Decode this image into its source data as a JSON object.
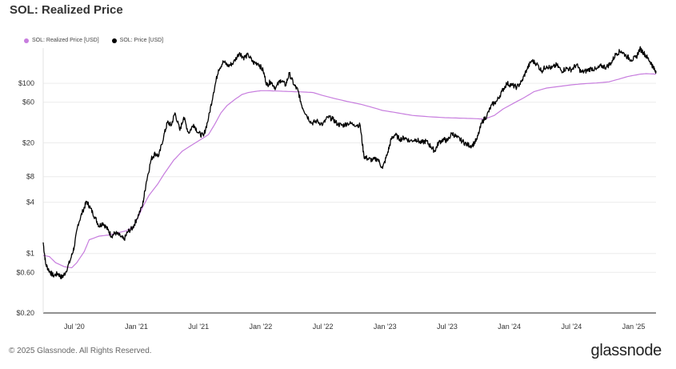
{
  "chart_data": {
    "type": "line",
    "title": "SOL: Realized Price",
    "xlabel": "",
    "ylabel": "",
    "yscale": "log",
    "ylim": [
      0.2,
      260
    ],
    "x_range": [
      2020.25,
      2025.18
    ],
    "y_ticks": [
      {
        "value": 0.2,
        "label": "$0.20"
      },
      {
        "value": 0.6,
        "label": "$0.60"
      },
      {
        "value": 1,
        "label": "$1"
      },
      {
        "value": 4,
        "label": "$4"
      },
      {
        "value": 8,
        "label": "$8"
      },
      {
        "value": 20,
        "label": "$20"
      },
      {
        "value": 60,
        "label": "$60"
      },
      {
        "value": 100,
        "label": "$100"
      }
    ],
    "x_ticks": [
      {
        "value": 2020.5,
        "label": "Jul '20"
      },
      {
        "value": 2021.0,
        "label": "Jan '21"
      },
      {
        "value": 2021.5,
        "label": "Jul '21"
      },
      {
        "value": 2022.0,
        "label": "Jan '22"
      },
      {
        "value": 2022.5,
        "label": "Jul '22"
      },
      {
        "value": 2023.0,
        "label": "Jan '23"
      },
      {
        "value": 2023.5,
        "label": "Jul '23"
      },
      {
        "value": 2024.0,
        "label": "Jan '24"
      },
      {
        "value": 2024.5,
        "label": "Jul '24"
      },
      {
        "value": 2025.0,
        "label": "Jan '25"
      }
    ],
    "grid": true,
    "legend_position": "top-left",
    "series": [
      {
        "name": "SOL: Realized Price [USD]",
        "color": "#c77dde",
        "points": [
          [
            2020.25,
            0.95
          ],
          [
            2020.3,
            0.92
          ],
          [
            2020.35,
            0.78
          ],
          [
            2020.42,
            0.7
          ],
          [
            2020.48,
            0.68
          ],
          [
            2020.52,
            0.78
          ],
          [
            2020.58,
            1.05
          ],
          [
            2020.62,
            1.45
          ],
          [
            2020.7,
            1.6
          ],
          [
            2020.78,
            1.65
          ],
          [
            2020.85,
            1.75
          ],
          [
            2020.92,
            1.85
          ],
          [
            2020.98,
            2.1
          ],
          [
            2021.05,
            3.5
          ],
          [
            2021.1,
            4.8
          ],
          [
            2021.17,
            6.5
          ],
          [
            2021.22,
            8.5
          ],
          [
            2021.3,
            12.5
          ],
          [
            2021.37,
            16
          ],
          [
            2021.45,
            19
          ],
          [
            2021.52,
            22
          ],
          [
            2021.58,
            25
          ],
          [
            2021.63,
            33
          ],
          [
            2021.68,
            45
          ],
          [
            2021.73,
            55
          ],
          [
            2021.8,
            66
          ],
          [
            2021.85,
            74
          ],
          [
            2021.9,
            78
          ],
          [
            2021.95,
            80
          ],
          [
            2022.0,
            82
          ],
          [
            2022.05,
            82
          ],
          [
            2022.15,
            81
          ],
          [
            2022.25,
            80
          ],
          [
            2022.35,
            79
          ],
          [
            2022.42,
            78
          ],
          [
            2022.5,
            72
          ],
          [
            2022.6,
            66
          ],
          [
            2022.7,
            61
          ],
          [
            2022.8,
            57
          ],
          [
            2022.9,
            52
          ],
          [
            2022.98,
            48
          ],
          [
            2023.1,
            45
          ],
          [
            2023.22,
            42
          ],
          [
            2023.35,
            40.5
          ],
          [
            2023.48,
            39.5
          ],
          [
            2023.6,
            39
          ],
          [
            2023.72,
            38.5
          ],
          [
            2023.8,
            38
          ],
          [
            2023.88,
            42
          ],
          [
            2023.95,
            50
          ],
          [
            2024.05,
            60
          ],
          [
            2024.12,
            68
          ],
          [
            2024.2,
            80
          ],
          [
            2024.3,
            88
          ],
          [
            2024.4,
            92
          ],
          [
            2024.5,
            96
          ],
          [
            2024.6,
            99
          ],
          [
            2024.7,
            101
          ],
          [
            2024.8,
            104
          ],
          [
            2024.88,
            112
          ],
          [
            2024.95,
            120
          ],
          [
            2025.05,
            128
          ],
          [
            2025.1,
            130
          ],
          [
            2025.15,
            129
          ],
          [
            2025.18,
            128
          ]
        ]
      },
      {
        "name": "SOL: Price [USD]",
        "color": "#000000",
        "points": [
          [
            2020.25,
            1.35
          ],
          [
            2020.27,
            0.75
          ],
          [
            2020.3,
            0.62
          ],
          [
            2020.33,
            0.55
          ],
          [
            2020.37,
            0.58
          ],
          [
            2020.4,
            0.52
          ],
          [
            2020.43,
            0.6
          ],
          [
            2020.47,
            0.85
          ],
          [
            2020.5,
            1.2
          ],
          [
            2020.53,
            2.2
          ],
          [
            2020.57,
            3.2
          ],
          [
            2020.6,
            4.1
          ],
          [
            2020.63,
            3.4
          ],
          [
            2020.67,
            2.6
          ],
          [
            2020.7,
            2.1
          ],
          [
            2020.73,
            2.3
          ],
          [
            2020.77,
            1.9
          ],
          [
            2020.8,
            1.6
          ],
          [
            2020.83,
            1.75
          ],
          [
            2020.87,
            1.6
          ],
          [
            2020.9,
            1.45
          ],
          [
            2020.93,
            1.8
          ],
          [
            2020.97,
            2.0
          ],
          [
            2021.0,
            2.5
          ],
          [
            2021.05,
            3.7
          ],
          [
            2021.08,
            7.0
          ],
          [
            2021.12,
            13.0
          ],
          [
            2021.15,
            15.0
          ],
          [
            2021.18,
            14.0
          ],
          [
            2021.22,
            24.0
          ],
          [
            2021.25,
            35.0
          ],
          [
            2021.28,
            32.0
          ],
          [
            2021.31,
            45.0
          ],
          [
            2021.35,
            28.0
          ],
          [
            2021.38,
            40.0
          ],
          [
            2021.42,
            26.0
          ],
          [
            2021.46,
            33.0
          ],
          [
            2021.5,
            26.0
          ],
          [
            2021.54,
            24.0
          ],
          [
            2021.58,
            39.0
          ],
          [
            2021.62,
            78.0
          ],
          [
            2021.66,
            145.0
          ],
          [
            2021.7,
            180.0
          ],
          [
            2021.74,
            160.0
          ],
          [
            2021.78,
            175.0
          ],
          [
            2021.83,
            230.0
          ],
          [
            2021.86,
            200.0
          ],
          [
            2021.9,
            215.0
          ],
          [
            2021.94,
            175.0
          ],
          [
            2021.98,
            172.0
          ],
          [
            2022.02,
            140.0
          ],
          [
            2022.05,
            95.0
          ],
          [
            2022.08,
            105.0
          ],
          [
            2022.12,
            88.0
          ],
          [
            2022.16,
            110.0
          ],
          [
            2022.2,
            95.0
          ],
          [
            2022.23,
            130.0
          ],
          [
            2022.27,
            95.0
          ],
          [
            2022.3,
            82.0
          ],
          [
            2022.33,
            55.0
          ],
          [
            2022.37,
            42.0
          ],
          [
            2022.41,
            34.0
          ],
          [
            2022.45,
            36.0
          ],
          [
            2022.5,
            33.0
          ],
          [
            2022.54,
            40.0
          ],
          [
            2022.58,
            38.0
          ],
          [
            2022.62,
            33.0
          ],
          [
            2022.66,
            32.0
          ],
          [
            2022.7,
            34.0
          ],
          [
            2022.75,
            33.0
          ],
          [
            2022.8,
            32.0
          ],
          [
            2022.83,
            14.0
          ],
          [
            2022.86,
            13.0
          ],
          [
            2022.9,
            12.5
          ],
          [
            2022.94,
            13.0
          ],
          [
            2022.98,
            10.0
          ],
          [
            2023.02,
            15.0
          ],
          [
            2023.05,
            22.0
          ],
          [
            2023.08,
            25.0
          ],
          [
            2023.12,
            22.0
          ],
          [
            2023.16,
            23.0
          ],
          [
            2023.2,
            21.0
          ],
          [
            2023.25,
            22.0
          ],
          [
            2023.29,
            20.0
          ],
          [
            2023.33,
            21.0
          ],
          [
            2023.37,
            18.0
          ],
          [
            2023.4,
            16.0
          ],
          [
            2023.43,
            20.0
          ],
          [
            2023.47,
            22.0
          ],
          [
            2023.5,
            21.0
          ],
          [
            2023.54,
            26.0
          ],
          [
            2023.58,
            23.0
          ],
          [
            2023.62,
            21.0
          ],
          [
            2023.66,
            19.0
          ],
          [
            2023.7,
            18.5
          ],
          [
            2023.74,
            22.0
          ],
          [
            2023.78,
            35.0
          ],
          [
            2023.82,
            42.0
          ],
          [
            2023.86,
            56.0
          ],
          [
            2023.9,
            62.0
          ],
          [
            2023.94,
            80.0
          ],
          [
            2023.98,
            100.0
          ],
          [
            2024.02,
            95.0
          ],
          [
            2024.06,
            90.0
          ],
          [
            2024.1,
            105.0
          ],
          [
            2024.14,
            145.0
          ],
          [
            2024.18,
            185.0
          ],
          [
            2024.22,
            170.0
          ],
          [
            2024.26,
            140.0
          ],
          [
            2024.3,
            160.0
          ],
          [
            2024.34,
            150.0
          ],
          [
            2024.38,
            165.0
          ],
          [
            2024.42,
            140.0
          ],
          [
            2024.46,
            150.0
          ],
          [
            2024.5,
            145.0
          ],
          [
            2024.54,
            165.0
          ],
          [
            2024.58,
            135.0
          ],
          [
            2024.62,
            140.0
          ],
          [
            2024.66,
            150.0
          ],
          [
            2024.7,
            145.0
          ],
          [
            2024.74,
            160.0
          ],
          [
            2024.78,
            155.0
          ],
          [
            2024.82,
            175.0
          ],
          [
            2024.86,
            225.0
          ],
          [
            2024.9,
            240.0
          ],
          [
            2024.94,
            210.0
          ],
          [
            2024.98,
            190.0
          ],
          [
            2025.02,
            200.0
          ],
          [
            2025.05,
            255.0
          ],
          [
            2025.08,
            230.0
          ],
          [
            2025.11,
            200.0
          ],
          [
            2025.14,
            175.0
          ],
          [
            2025.16,
            150.0
          ],
          [
            2025.18,
            140.0
          ]
        ]
      }
    ]
  },
  "legend": {
    "items": [
      {
        "label": "SOL: Realized Price [USD]",
        "color": "#c77dde"
      },
      {
        "label": "SOL: Price [USD]",
        "color": "#000000"
      }
    ]
  },
  "footer": {
    "copyright": "© 2025 Glassnode. All Rights Reserved.",
    "brand": "glassnode"
  }
}
